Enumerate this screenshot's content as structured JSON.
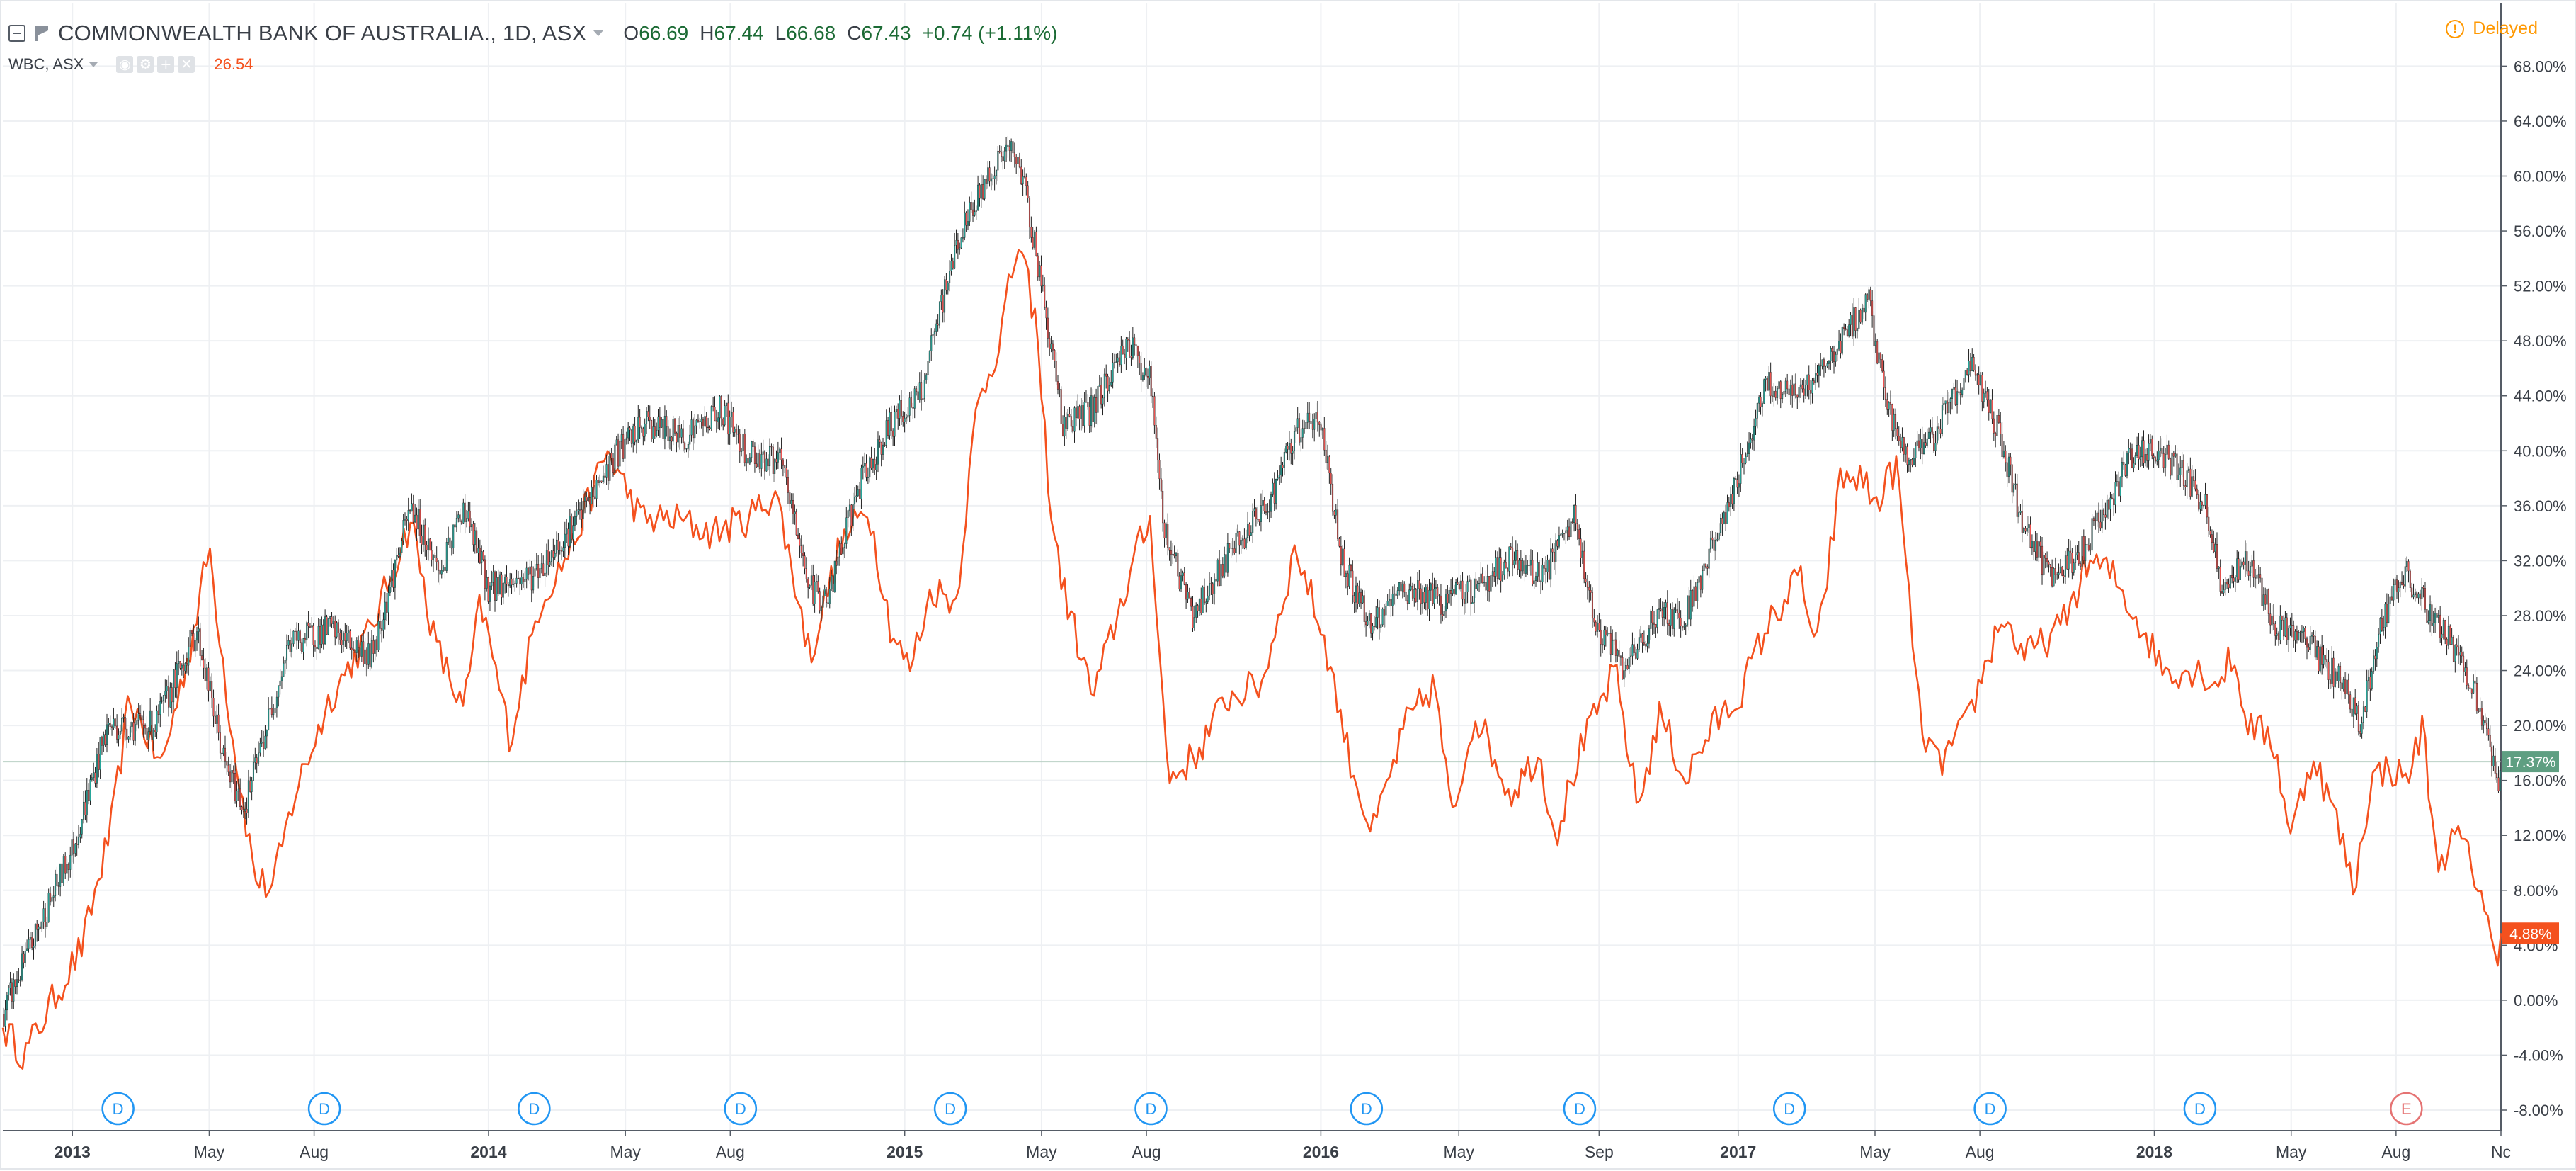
{
  "legend": {
    "main_title": "COMMONWEALTH BANK OF AUSTRALIA., 1D, ASX",
    "o_label": "O",
    "o_value": "66.69",
    "h_label": "H",
    "h_value": "67.44",
    "l_label": "L",
    "l_value": "66.68",
    "c_label": "C",
    "c_value": "67.43",
    "change": "+0.74 (+1.11%)",
    "compare_title": "WBC, ASX",
    "compare_value": "26.54",
    "compare_tools": [
      "eye-icon",
      "settings-icon",
      "add-icon",
      "close-icon"
    ]
  },
  "status": {
    "delayed": "Delayed"
  },
  "colors": {
    "up": "#26a69a",
    "down": "#ef5350",
    "wick": "#222222",
    "compare": "#f4511e",
    "grid": "#eef0f3",
    "axis_text": "#3a3f47",
    "main_badge": "#5f9f82",
    "compare_badge": "#f4511e",
    "dividend": "#2196f3",
    "earnings": "#e57373"
  },
  "chart_data": {
    "type": "candlestick-with-comparison-line",
    "y_axis_unit": "percent",
    "ylim": [
      -8,
      69
    ],
    "y_ticks": [
      -8,
      -4,
      0,
      4,
      8,
      12,
      16,
      20,
      24,
      28,
      32,
      36,
      40,
      44,
      48,
      52,
      56,
      60,
      64,
      68
    ],
    "y_tick_labels": [
      "-8.00%",
      "-4.00%",
      "0.00%",
      "4.00%",
      "8.00%",
      "12.00%",
      "16.00%",
      "20.00%",
      "24.00%",
      "28.00%",
      "32.00%",
      "36.00%",
      "40.00%",
      "44.00%",
      "48.00%",
      "52.00%",
      "56.00%",
      "60.00%",
      "64.00%",
      "68.00%"
    ],
    "x_range": [
      "2012-11-01",
      "2018-11-01"
    ],
    "x_ticks": [
      {
        "date": "2013-01-01",
        "label": "2013",
        "bold": true
      },
      {
        "date": "2013-05-01",
        "label": "May"
      },
      {
        "date": "2013-08-01",
        "label": "Aug"
      },
      {
        "date": "2014-01-01",
        "label": "2014",
        "bold": true
      },
      {
        "date": "2014-05-01",
        "label": "May"
      },
      {
        "date": "2014-08-01",
        "label": "Aug"
      },
      {
        "date": "2015-01-01",
        "label": "2015",
        "bold": true
      },
      {
        "date": "2015-05-01",
        "label": "May"
      },
      {
        "date": "2015-08-01",
        "label": "Aug"
      },
      {
        "date": "2016-01-01",
        "label": "2016",
        "bold": true
      },
      {
        "date": "2016-05-01",
        "label": "May"
      },
      {
        "date": "2016-09-01",
        "label": "Sep"
      },
      {
        "date": "2017-01-01",
        "label": "2017",
        "bold": true
      },
      {
        "date": "2017-05-01",
        "label": "May"
      },
      {
        "date": "2017-08-01",
        "label": "Aug"
      },
      {
        "date": "2018-01-01",
        "label": "2018",
        "bold": true
      },
      {
        "date": "2018-05-01",
        "label": "May"
      },
      {
        "date": "2018-08-01",
        "label": "Aug"
      },
      {
        "date": "2018-11-01",
        "label": "Nc"
      }
    ],
    "series": [
      {
        "name": "COMMONWEALTH BANK OF AUSTRALIA.",
        "style": "candlestick",
        "key_points": [
          [
            "2012-11-01",
            -1
          ],
          [
            "2012-12-01",
            5
          ],
          [
            "2013-01-01",
            11
          ],
          [
            "2013-02-01",
            20
          ],
          [
            "2013-03-15",
            20
          ],
          [
            "2013-04-20",
            27
          ],
          [
            "2013-05-15",
            17
          ],
          [
            "2013-06-01",
            14
          ],
          [
            "2013-07-10",
            26
          ],
          [
            "2013-08-15",
            27
          ],
          [
            "2013-09-20",
            25
          ],
          [
            "2013-10-25",
            36
          ],
          [
            "2013-11-20",
            31
          ],
          [
            "2013-12-10",
            36
          ],
          [
            "2014-01-01",
            30
          ],
          [
            "2014-02-10",
            31
          ],
          [
            "2014-03-20",
            35
          ],
          [
            "2014-04-25",
            40
          ],
          [
            "2014-05-20",
            42
          ],
          [
            "2014-06-20",
            41
          ],
          [
            "2014-07-25",
            43
          ],
          [
            "2014-08-15",
            40
          ],
          [
            "2014-09-15",
            39
          ],
          [
            "2014-10-10",
            30
          ],
          [
            "2014-10-25",
            29
          ],
          [
            "2014-11-20",
            37
          ],
          [
            "2014-12-20",
            42
          ],
          [
            "2015-01-15",
            44
          ],
          [
            "2015-02-15",
            55
          ],
          [
            "2015-03-15",
            60
          ],
          [
            "2015-04-01",
            62
          ],
          [
            "2015-04-15",
            60
          ],
          [
            "2015-05-01",
            52
          ],
          [
            "2015-05-20",
            42
          ],
          [
            "2015-06-15",
            43
          ],
          [
            "2015-07-15",
            48
          ],
          [
            "2015-08-05",
            45
          ],
          [
            "2015-08-15",
            35
          ],
          [
            "2015-09-10",
            28
          ],
          [
            "2015-10-10",
            32
          ],
          [
            "2015-11-15",
            36
          ],
          [
            "2015-12-15",
            42
          ],
          [
            "2016-01-01",
            42
          ],
          [
            "2016-01-20",
            32
          ],
          [
            "2016-02-15",
            27
          ],
          [
            "2016-03-15",
            30
          ],
          [
            "2016-04-15",
            29
          ],
          [
            "2016-05-15",
            30
          ],
          [
            "2016-06-15",
            32
          ],
          [
            "2016-07-15",
            31
          ],
          [
            "2016-08-10",
            35
          ],
          [
            "2016-08-30",
            27
          ],
          [
            "2016-09-25",
            24
          ],
          [
            "2016-10-20",
            28
          ],
          [
            "2016-11-15",
            28
          ],
          [
            "2016-12-10",
            33
          ],
          [
            "2017-01-01",
            38
          ],
          [
            "2017-01-25",
            45
          ],
          [
            "2017-02-25",
            44
          ],
          [
            "2017-03-25",
            47
          ],
          [
            "2017-04-25",
            51
          ],
          [
            "2017-05-10",
            44
          ],
          [
            "2017-05-25",
            40
          ],
          [
            "2017-06-15",
            40
          ],
          [
            "2017-07-15",
            45
          ],
          [
            "2017-07-25",
            46
          ],
          [
            "2017-08-15",
            42
          ],
          [
            "2017-09-10",
            34
          ],
          [
            "2017-10-01",
            31
          ],
          [
            "2017-10-25",
            32
          ],
          [
            "2017-11-20",
            36
          ],
          [
            "2017-12-15",
            40
          ],
          [
            "2018-01-01",
            40
          ],
          [
            "2018-01-20",
            39
          ],
          [
            "2018-02-15",
            36
          ],
          [
            "2018-03-01",
            30
          ],
          [
            "2018-03-25",
            32
          ],
          [
            "2018-04-20",
            27
          ],
          [
            "2018-05-15",
            26
          ],
          [
            "2018-06-15",
            23
          ],
          [
            "2018-07-01",
            20
          ],
          [
            "2018-07-20",
            28
          ],
          [
            "2018-08-10",
            31
          ],
          [
            "2018-09-01",
            28
          ],
          [
            "2018-09-25",
            25
          ],
          [
            "2018-10-15",
            21
          ],
          [
            "2018-10-30",
            15
          ],
          [
            "2018-11-01",
            17.4
          ]
        ]
      },
      {
        "name": "WBC, ASX",
        "style": "line",
        "key_points": [
          [
            "2012-11-01",
            -2
          ],
          [
            "2012-11-20",
            -4
          ],
          [
            "2012-12-15",
            0
          ],
          [
            "2013-01-10",
            4
          ],
          [
            "2013-02-05",
            13
          ],
          [
            "2013-02-20",
            22
          ],
          [
            "2013-03-20",
            17
          ],
          [
            "2013-04-15",
            26
          ],
          [
            "2013-05-01",
            33
          ],
          [
            "2013-05-20",
            20
          ],
          [
            "2013-06-10",
            9
          ],
          [
            "2013-06-25",
            8
          ],
          [
            "2013-07-15",
            15
          ],
          [
            "2013-08-15",
            22
          ],
          [
            "2013-09-20",
            27
          ],
          [
            "2013-10-25",
            35
          ],
          [
            "2013-11-15",
            26
          ],
          [
            "2013-12-10",
            21
          ],
          [
            "2013-12-25",
            29
          ],
          [
            "2014-01-20",
            19
          ],
          [
            "2014-02-15",
            29
          ],
          [
            "2014-03-15",
            33
          ],
          [
            "2014-04-15",
            40
          ],
          [
            "2014-05-15",
            35
          ],
          [
            "2014-06-15",
            35
          ],
          [
            "2014-07-15",
            34
          ],
          [
            "2014-08-15",
            35
          ],
          [
            "2014-09-10",
            37
          ],
          [
            "2014-10-10",
            25
          ],
          [
            "2014-11-05",
            33
          ],
          [
            "2014-11-30",
            36
          ],
          [
            "2014-12-20",
            27
          ],
          [
            "2015-01-05",
            24
          ],
          [
            "2015-01-25",
            30
          ],
          [
            "2015-02-15",
            29
          ],
          [
            "2015-03-05",
            43
          ],
          [
            "2015-03-25",
            48
          ],
          [
            "2015-04-10",
            55
          ],
          [
            "2015-04-25",
            50
          ],
          [
            "2015-05-10",
            35
          ],
          [
            "2015-05-20",
            30
          ],
          [
            "2015-06-15",
            22
          ],
          [
            "2015-07-10",
            29
          ],
          [
            "2015-07-25",
            33
          ],
          [
            "2015-08-05",
            35
          ],
          [
            "2015-08-20",
            16
          ],
          [
            "2015-09-15",
            18
          ],
          [
            "2015-10-10",
            22
          ],
          [
            "2015-11-10",
            23
          ],
          [
            "2015-12-10",
            33
          ],
          [
            "2016-01-05",
            26
          ],
          [
            "2016-01-25",
            18
          ],
          [
            "2016-02-15",
            12
          ],
          [
            "2016-03-15",
            20
          ],
          [
            "2016-04-10",
            23
          ],
          [
            "2016-04-25",
            13
          ],
          [
            "2016-05-15",
            21
          ],
          [
            "2016-06-15",
            15
          ],
          [
            "2016-07-10",
            18
          ],
          [
            "2016-07-25",
            12
          ],
          [
            "2016-08-15",
            18
          ],
          [
            "2016-09-15",
            24
          ],
          [
            "2016-10-05",
            14
          ],
          [
            "2016-10-25",
            21
          ],
          [
            "2016-11-15",
            16
          ],
          [
            "2016-12-10",
            20
          ],
          [
            "2017-01-01",
            22
          ],
          [
            "2017-01-25",
            27
          ],
          [
            "2017-02-25",
            31
          ],
          [
            "2017-03-10",
            25
          ],
          [
            "2017-04-01",
            38
          ],
          [
            "2017-04-20",
            38
          ],
          [
            "2017-05-01",
            36
          ],
          [
            "2017-05-20",
            39
          ],
          [
            "2017-06-10",
            20
          ],
          [
            "2017-06-25",
            17
          ],
          [
            "2017-07-20",
            20
          ],
          [
            "2017-08-20",
            28
          ],
          [
            "2017-09-10",
            25
          ],
          [
            "2017-10-10",
            27
          ],
          [
            "2017-11-05",
            32
          ],
          [
            "2017-11-25",
            31
          ],
          [
            "2017-12-15",
            28
          ],
          [
            "2018-01-10",
            24
          ],
          [
            "2018-02-10",
            24
          ],
          [
            "2018-02-25",
            23
          ],
          [
            "2018-03-10",
            25
          ],
          [
            "2018-03-25",
            20
          ],
          [
            "2018-04-15",
            19
          ],
          [
            "2018-05-01",
            12
          ],
          [
            "2018-05-20",
            18
          ],
          [
            "2018-06-10",
            13
          ],
          [
            "2018-06-25",
            8
          ],
          [
            "2018-07-10",
            16
          ],
          [
            "2018-07-25",
            17
          ],
          [
            "2018-08-10",
            16
          ],
          [
            "2018-08-25",
            20
          ],
          [
            "2018-09-05",
            10
          ],
          [
            "2018-09-25",
            12
          ],
          [
            "2018-10-15",
            8
          ],
          [
            "2018-10-28",
            2
          ],
          [
            "2018-11-01",
            4.88
          ]
        ]
      }
    ],
    "current_value_badges": [
      {
        "value": 17.37,
        "label": "17.37%",
        "series": "COMMONWEALTH BANK OF AUSTRALIA."
      },
      {
        "value": 4.88,
        "label": "4.88%",
        "series": "WBC, ASX"
      }
    ],
    "reference_line": 17.37,
    "events": [
      {
        "date": "2013-02-10",
        "label": "D"
      },
      {
        "date": "2013-08-10",
        "label": "D"
      },
      {
        "date": "2014-02-10",
        "label": "D"
      },
      {
        "date": "2014-08-10",
        "label": "D"
      },
      {
        "date": "2015-02-10",
        "label": "D"
      },
      {
        "date": "2015-08-05",
        "label": "D"
      },
      {
        "date": "2016-02-10",
        "label": "D"
      },
      {
        "date": "2016-08-15",
        "label": "D"
      },
      {
        "date": "2017-02-15",
        "label": "D"
      },
      {
        "date": "2017-08-10",
        "label": "D"
      },
      {
        "date": "2018-02-10",
        "label": "D"
      },
      {
        "date": "2018-08-10",
        "label": "E"
      }
    ]
  }
}
